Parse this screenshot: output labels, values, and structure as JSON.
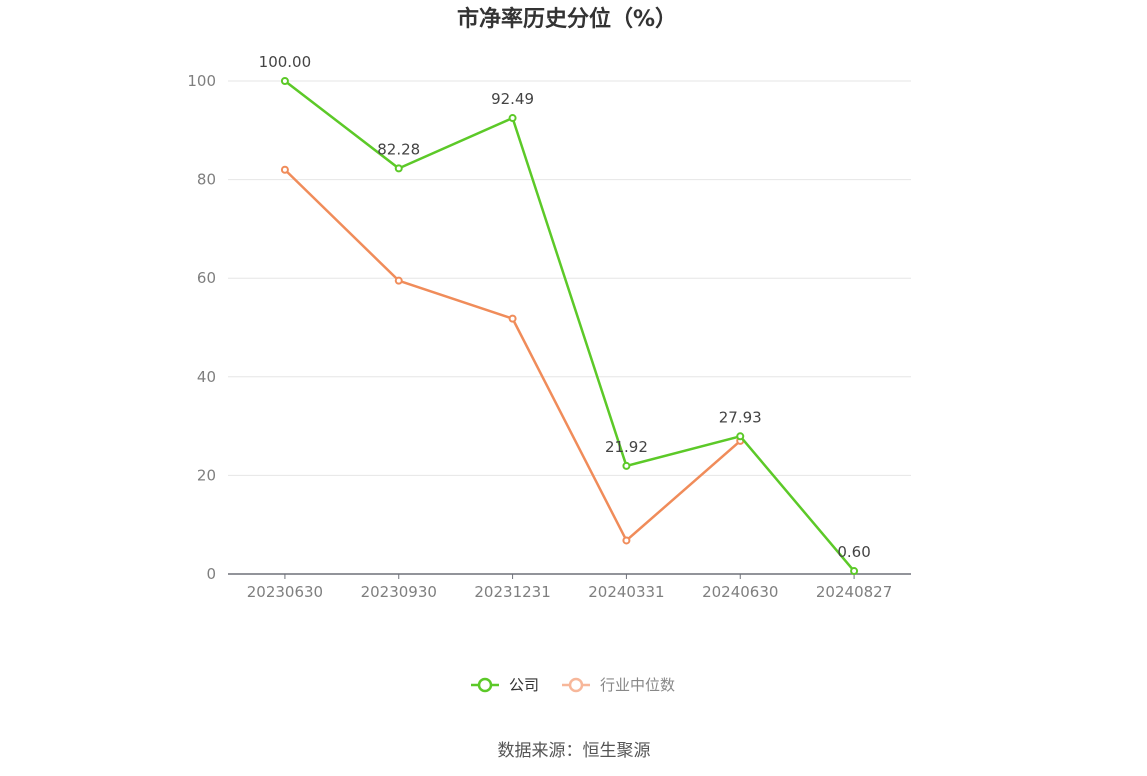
{
  "chart_data": {
    "type": "line",
    "title": "市净率历史分位（%）",
    "categories": [
      "20230630",
      "20230930",
      "20231231",
      "20240331",
      "20240630",
      "20240827"
    ],
    "ylim": [
      0,
      100
    ],
    "yticks": [
      0,
      20,
      40,
      60,
      80,
      100
    ],
    "grid": true,
    "legend_position": "bottom",
    "series": [
      {
        "name": "公司",
        "color": "#5cc928",
        "values": [
          100.0,
          82.28,
          92.49,
          21.92,
          27.93,
          0.6
        ],
        "labels": [
          "100.00",
          "82.28",
          "92.49",
          "21.92",
          "27.93",
          "0.60"
        ]
      },
      {
        "name": "行业中位数",
        "color": "#f08c5a",
        "legend_color": "#f7b79a",
        "values": [
          82.0,
          59.5,
          51.8,
          6.8,
          27.0,
          null
        ]
      }
    ],
    "source": "数据来源：恒生聚源"
  }
}
